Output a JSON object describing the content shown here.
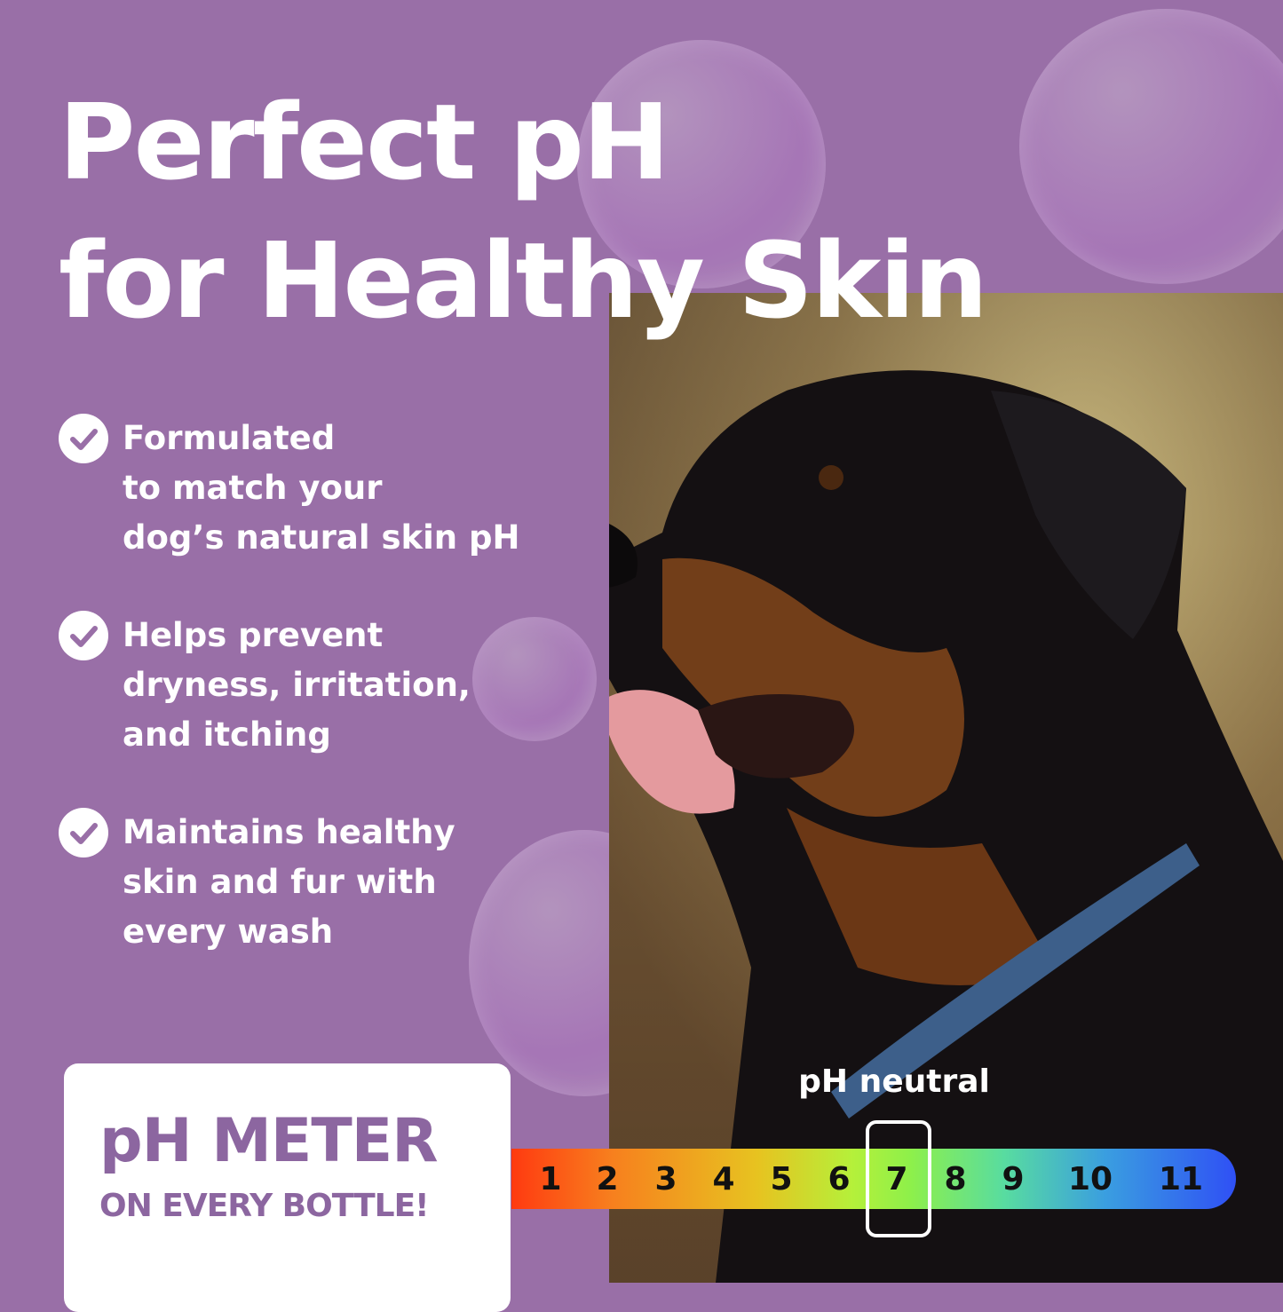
{
  "headline": {
    "line1": "Perfect pH",
    "line2": "for Healthy Skin"
  },
  "bullets": [
    {
      "icon": "check-circle-icon",
      "lines": [
        "Formulated",
        "to match your",
        "dog’s natural skin pH"
      ]
    },
    {
      "icon": "check-circle-icon",
      "lines": [
        "Helps prevent",
        "dryness, irritation,",
        "and itching"
      ]
    },
    {
      "icon": "check-circle-icon",
      "lines": [
        "Maintains healthy",
        "skin and fur with",
        "every wash"
      ]
    }
  ],
  "badge": {
    "title": "pH METER",
    "subtitle": "ON EVERY BOTTLE!"
  },
  "ph_meter": {
    "scale": [
      "1",
      "2",
      "3",
      "4",
      "5",
      "6",
      "7",
      "8",
      "9",
      "10",
      "11"
    ],
    "highlighted": "7",
    "highlight_label": "pH neutral"
  },
  "colors": {
    "background": "#996fa7",
    "accent_text": "#8c66a0",
    "white": "#ffffff"
  },
  "photo": {
    "subject": "rottweiler-dog-photo"
  }
}
